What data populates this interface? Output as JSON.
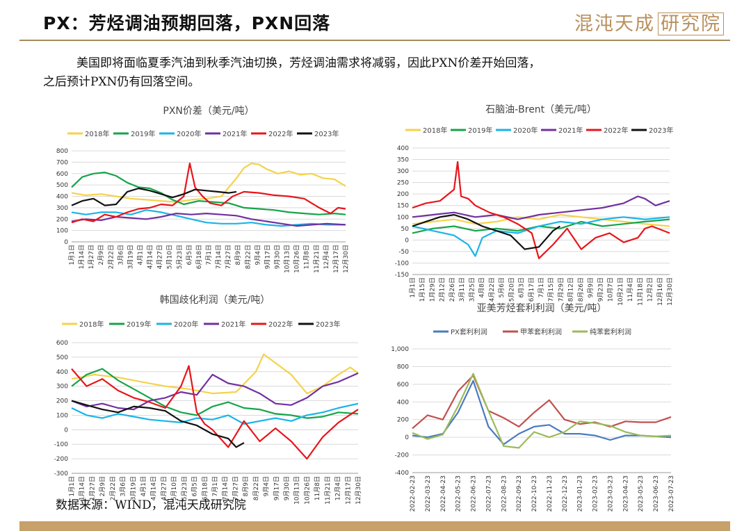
{
  "page": {
    "title": "PX：芳烃调油预期回落，PXN回落",
    "logo_text": "混沌天成",
    "logo_boxed": "研究院",
    "intro_line1": "美国即将面临夏季汽油到秋季汽油切换，芳烃调油需求将减弱，因此PXN价差开始回落，",
    "intro_line2": "之后预计PXN仍有回落空间。",
    "source": "数据来源：WIND，混沌天成研究院"
  },
  "colors": {
    "y2018": "#f5d24a",
    "y2019": "#16a34a",
    "y2020": "#19b4e8",
    "y2021": "#7030a0",
    "y2022": "#e8151b",
    "y2023": "#111111",
    "px": "#4a7ac0",
    "toluene": "#c0504d",
    "benzene": "#9bbb59",
    "grid": "#d9d9d9",
    "rule": "#a58a5b"
  },
  "date_ticks": [
    "1月1日",
    "1月14日",
    "1月27日",
    "2月9日",
    "2月22日",
    "3月6日",
    "3月19日",
    "4月1日",
    "4月14日",
    "4月27日",
    "5月10日",
    "5月23日",
    "6月5日",
    "6月18日",
    "7月1日",
    "7月14日",
    "7月27日",
    "8月9日",
    "8月22日",
    "9月4日",
    "9月17日",
    "9月30日",
    "10月13日",
    "10月26日",
    "11月8日",
    "11月21日",
    "12月4日",
    "12月17日",
    "12月30日"
  ],
  "date_ticks_b": [
    "1月1日",
    "1月15日",
    "1月29日",
    "2月12日",
    "2月26日",
    "3月11日",
    "3月25日",
    "4月8日",
    "4月22日",
    "5月6日",
    "5月20日",
    "6月3日",
    "6月17日",
    "7月1日",
    "7月15日",
    "7月29日",
    "8月12日",
    "8月26日",
    "9月9日",
    "9月23日",
    "10月7日",
    "10月21日",
    "11月4日",
    "11月18日",
    "12月2日",
    "12月16日",
    "12月30日"
  ],
  "chart_data": [
    {
      "type": "line",
      "title": "PXN价差（美元/吨）",
      "x_type": "day-of-year",
      "ylim": [
        0,
        800
      ],
      "yticks": [
        0,
        100,
        200,
        300,
        400,
        500,
        600,
        700,
        800
      ],
      "legend": "top",
      "grid": true,
      "series": [
        {
          "name": "2018年",
          "x": [
            1,
            20,
            40,
            60,
            80,
            100,
            120,
            140,
            160,
            180,
            200,
            220,
            230,
            240,
            250,
            260,
            275,
            290,
            305,
            320,
            335,
            350,
            365
          ],
          "values": [
            430,
            410,
            420,
            400,
            380,
            370,
            360,
            350,
            370,
            380,
            400,
            560,
            650,
            690,
            680,
            640,
            600,
            620,
            590,
            600,
            560,
            550,
            490
          ]
        },
        {
          "name": "2019年",
          "x": [
            1,
            15,
            30,
            45,
            60,
            75,
            90,
            105,
            120,
            135,
            150,
            170,
            190,
            210,
            230,
            250,
            270,
            290,
            310,
            330,
            350,
            365
          ],
          "values": [
            480,
            570,
            600,
            610,
            580,
            520,
            480,
            470,
            430,
            370,
            330,
            360,
            350,
            340,
            300,
            290,
            280,
            260,
            250,
            240,
            250,
            240
          ]
        },
        {
          "name": "2020年",
          "x": [
            1,
            20,
            40,
            60,
            80,
            100,
            120,
            140,
            160,
            180,
            200,
            220,
            240,
            260,
            280,
            300,
            320,
            340,
            365
          ],
          "values": [
            260,
            240,
            260,
            260,
            240,
            280,
            260,
            230,
            200,
            170,
            160,
            160,
            170,
            150,
            140,
            150,
            160,
            150,
            150
          ]
        },
        {
          "name": "2021年",
          "x": [
            1,
            20,
            40,
            60,
            80,
            100,
            120,
            140,
            160,
            180,
            200,
            220,
            240,
            260,
            280,
            300,
            320,
            340,
            365
          ],
          "values": [
            180,
            200,
            190,
            220,
            210,
            200,
            220,
            250,
            240,
            250,
            240,
            230,
            200,
            180,
            160,
            140,
            150,
            160,
            150
          ]
        },
        {
          "name": "2022年",
          "x": [
            1,
            15,
            30,
            45,
            60,
            75,
            90,
            105,
            120,
            135,
            150,
            158,
            165,
            175,
            185,
            200,
            215,
            230,
            250,
            270,
            290,
            310,
            330,
            345,
            355,
            365
          ],
          "values": [
            170,
            200,
            180,
            240,
            220,
            260,
            290,
            300,
            330,
            320,
            400,
            690,
            480,
            400,
            340,
            320,
            400,
            440,
            430,
            410,
            400,
            380,
            300,
            250,
            300,
            290
          ]
        },
        {
          "name": "2023年",
          "x": [
            1,
            15,
            30,
            45,
            60,
            75,
            90,
            105,
            120,
            135,
            150,
            165,
            180,
            195,
            210,
            220
          ],
          "values": [
            320,
            360,
            380,
            320,
            330,
            440,
            470,
            450,
            420,
            390,
            420,
            460,
            450,
            440,
            430,
            440
          ]
        }
      ]
    },
    {
      "type": "line",
      "title": "石脑油-Brent（美元/吨）",
      "x_type": "day-of-year",
      "ylim": [
        -150,
        400
      ],
      "yticks": [
        -150,
        -100,
        -50,
        0,
        50,
        100,
        150,
        200,
        250,
        300,
        350,
        400
      ],
      "legend": "top",
      "grid": true,
      "series": [
        {
          "name": "2018年",
          "x": [
            1,
            30,
            60,
            90,
            120,
            150,
            180,
            210,
            240,
            270,
            300,
            330,
            365
          ],
          "values": [
            70,
            80,
            90,
            70,
            80,
            100,
            90,
            110,
            100,
            90,
            80,
            70,
            60
          ]
        },
        {
          "name": "2019年",
          "x": [
            1,
            30,
            60,
            90,
            120,
            150,
            180,
            210,
            240,
            270,
            300,
            330,
            365
          ],
          "values": [
            30,
            50,
            60,
            40,
            50,
            40,
            60,
            50,
            80,
            60,
            70,
            80,
            90
          ]
        },
        {
          "name": "2020年",
          "x": [
            1,
            30,
            60,
            80,
            90,
            100,
            120,
            150,
            180,
            210,
            240,
            270,
            300,
            330,
            365
          ],
          "values": [
            60,
            40,
            20,
            -20,
            -70,
            10,
            40,
            30,
            60,
            80,
            70,
            90,
            100,
            90,
            100
          ]
        },
        {
          "name": "2021年",
          "x": [
            1,
            30,
            60,
            90,
            120,
            150,
            180,
            210,
            240,
            270,
            300,
            320,
            330,
            345,
            365
          ],
          "values": [
            100,
            110,
            120,
            100,
            110,
            90,
            110,
            120,
            130,
            140,
            160,
            190,
            180,
            150,
            170
          ]
        },
        {
          "name": "2022年",
          "x": [
            1,
            20,
            40,
            60,
            65,
            70,
            80,
            90,
            110,
            130,
            150,
            170,
            180,
            200,
            220,
            240,
            260,
            280,
            300,
            320,
            330,
            340,
            365
          ],
          "values": [
            140,
            160,
            170,
            220,
            340,
            190,
            180,
            150,
            120,
            100,
            70,
            30,
            -80,
            -20,
            50,
            -40,
            10,
            30,
            -10,
            10,
            50,
            60,
            30
          ]
        },
        {
          "name": "2023年",
          "x": [
            1,
            20,
            40,
            60,
            80,
            100,
            120,
            140,
            160,
            180,
            200,
            210
          ],
          "values": [
            60,
            80,
            100,
            110,
            90,
            60,
            40,
            20,
            -40,
            -30,
            40,
            60
          ]
        }
      ]
    },
    {
      "type": "line",
      "title": "韩国歧化利润（美元/吨）",
      "x_type": "day-of-year",
      "ylim": [
        -300,
        600
      ],
      "yticks": [
        -300,
        -200,
        -100,
        0,
        100,
        200,
        300,
        400,
        500,
        600
      ],
      "legend": "top",
      "grid": true,
      "series": [
        {
          "name": "2018年",
          "x": [
            1,
            30,
            60,
            90,
            120,
            150,
            180,
            210,
            235,
            245,
            260,
            280,
            300,
            320,
            340,
            355,
            365
          ],
          "values": [
            350,
            380,
            360,
            330,
            300,
            280,
            250,
            260,
            400,
            520,
            460,
            380,
            250,
            300,
            380,
            430,
            390
          ]
        },
        {
          "name": "2019年",
          "x": [
            1,
            20,
            40,
            60,
            80,
            100,
            120,
            140,
            160,
            180,
            200,
            220,
            240,
            260,
            280,
            300,
            320,
            340,
            365
          ],
          "values": [
            300,
            380,
            420,
            340,
            280,
            220,
            160,
            120,
            100,
            160,
            190,
            150,
            140,
            110,
            100,
            80,
            90,
            120,
            110
          ]
        },
        {
          "name": "2020年",
          "x": [
            1,
            20,
            40,
            60,
            80,
            100,
            120,
            140,
            160,
            180,
            200,
            220,
            240,
            260,
            280,
            300,
            320,
            340,
            365
          ],
          "values": [
            150,
            100,
            80,
            110,
            90,
            70,
            60,
            50,
            80,
            70,
            100,
            40,
            60,
            80,
            60,
            100,
            120,
            150,
            180
          ]
        },
        {
          "name": "2021年",
          "x": [
            1,
            20,
            40,
            60,
            80,
            100,
            120,
            140,
            160,
            180,
            200,
            220,
            240,
            260,
            280,
            300,
            320,
            340,
            365
          ],
          "values": [
            200,
            160,
            180,
            150,
            140,
            200,
            220,
            260,
            240,
            380,
            320,
            300,
            250,
            180,
            170,
            220,
            300,
            330,
            390
          ]
        },
        {
          "name": "2022年",
          "x": [
            1,
            20,
            40,
            60,
            80,
            100,
            120,
            140,
            150,
            160,
            170,
            180,
            200,
            220,
            240,
            260,
            280,
            300,
            320,
            340,
            365
          ],
          "values": [
            420,
            300,
            350,
            270,
            220,
            190,
            150,
            300,
            440,
            120,
            40,
            0,
            -120,
            60,
            -80,
            10,
            -80,
            -200,
            -50,
            50,
            140
          ]
        },
        {
          "name": "2023年",
          "x": [
            1,
            20,
            40,
            60,
            80,
            100,
            120,
            140,
            160,
            180,
            200,
            210,
            220
          ],
          "values": [
            200,
            170,
            140,
            120,
            160,
            150,
            130,
            60,
            30,
            -30,
            -60,
            -120,
            -90
          ]
        }
      ]
    },
    {
      "type": "line",
      "title": "亚美芳烃套利利润（美元/吨）",
      "x_type": "date",
      "ylim": [
        -400,
        1000
      ],
      "yticks": [
        -400,
        -200,
        0,
        200,
        400,
        600,
        800,
        1000
      ],
      "categories": [
        "2022-02-23",
        "2022-03-23",
        "2022-04-23",
        "2022-05-23",
        "2022-06-23",
        "2022-07-23",
        "2022-08-23",
        "2022-09-23",
        "2022-10-23",
        "2022-11-23",
        "2022-12-23",
        "2023-01-23",
        "2023-02-23",
        "2023-03-23",
        "2023-04-23",
        "2023-05-23",
        "2023-06-23",
        "2023-07-23"
      ],
      "legend": "top",
      "grid": true,
      "series": [
        {
          "name": "PX套利利润",
          "values": [
            20,
            0,
            40,
            280,
            640,
            120,
            -80,
            40,
            120,
            140,
            40,
            40,
            20,
            -30,
            20,
            20,
            10,
            0
          ]
        },
        {
          "name": "甲苯套利利润",
          "values": [
            100,
            250,
            200,
            520,
            700,
            300,
            220,
            120,
            280,
            420,
            200,
            150,
            170,
            120,
            180,
            170,
            170,
            230
          ]
        },
        {
          "name": "纯苯套利利润",
          "values": [
            50,
            -20,
            30,
            350,
            720,
            300,
            -100,
            -120,
            60,
            0,
            60,
            180,
            160,
            130,
            60,
            20,
            10,
            20
          ]
        }
      ]
    }
  ]
}
